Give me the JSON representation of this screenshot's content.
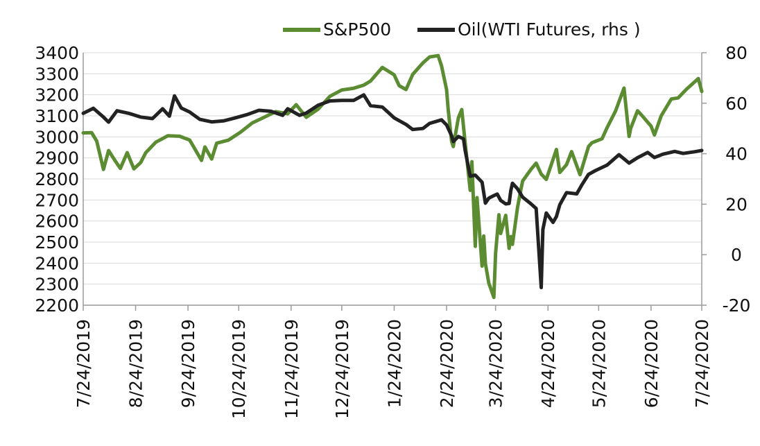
{
  "chart_data": {
    "type": "line",
    "title": "",
    "xlabel": "",
    "ylabel": "",
    "grid": "horizontal",
    "legend": "top-right",
    "x_ticks": [
      "7/24/2019",
      "8/24/2019",
      "9/24/2019",
      "10/24/2019",
      "11/24/2019",
      "12/24/2019",
      "1/24/2020",
      "2/24/2020",
      "3/24/2020",
      "4/24/2020",
      "5/24/2020",
      "6/24/2020",
      "7/24/2020"
    ],
    "left_axis": {
      "ylim": [
        2200,
        3400
      ],
      "ticks": [
        2200,
        2300,
        2400,
        2500,
        2600,
        2700,
        2800,
        2900,
        3000,
        3100,
        3200,
        3300,
        3400
      ]
    },
    "right_axis": {
      "ylim": [
        -20,
        80
      ],
      "ticks": [
        -20,
        0,
        20,
        40,
        60,
        80
      ],
      "tick_labels": [
        "-20",
        "0",
        "20",
        "40",
        "60",
        "80"
      ]
    },
    "series": [
      {
        "name": "S&P500",
        "axis": "left",
        "color": "#5b8c32",
        "points": [
          [
            "2019-07-24",
            3019
          ],
          [
            "2019-07-29",
            3020
          ],
          [
            "2019-08-01",
            2980
          ],
          [
            "2019-08-05",
            2845
          ],
          [
            "2019-08-08",
            2935
          ],
          [
            "2019-08-12",
            2885
          ],
          [
            "2019-08-15",
            2850
          ],
          [
            "2019-08-19",
            2925
          ],
          [
            "2019-08-23",
            2848
          ],
          [
            "2019-08-27",
            2878
          ],
          [
            "2019-08-30",
            2925
          ],
          [
            "2019-09-05",
            2975
          ],
          [
            "2019-09-12",
            3005
          ],
          [
            "2019-09-19",
            3003
          ],
          [
            "2019-09-25",
            2985
          ],
          [
            "2019-10-02",
            2888
          ],
          [
            "2019-10-04",
            2952
          ],
          [
            "2019-10-08",
            2895
          ],
          [
            "2019-10-11",
            2970
          ],
          [
            "2019-10-18",
            2985
          ],
          [
            "2019-10-25",
            3022
          ],
          [
            "2019-11-01",
            3066
          ],
          [
            "2019-11-08",
            3093
          ],
          [
            "2019-11-15",
            3120
          ],
          [
            "2019-11-22",
            3110
          ],
          [
            "2019-11-27",
            3153
          ],
          [
            "2019-12-03",
            3093
          ],
          [
            "2019-12-10",
            3132
          ],
          [
            "2019-12-17",
            3193
          ],
          [
            "2019-12-24",
            3223
          ],
          [
            "2019-12-31",
            3231
          ],
          [
            "2020-01-06",
            3246
          ],
          [
            "2020-01-10",
            3265
          ],
          [
            "2020-01-17",
            3330
          ],
          [
            "2020-01-24",
            3295
          ],
          [
            "2020-01-27",
            3243
          ],
          [
            "2020-01-31",
            3225
          ],
          [
            "2020-02-04",
            3297
          ],
          [
            "2020-02-10",
            3352
          ],
          [
            "2020-02-14",
            3380
          ],
          [
            "2020-02-19",
            3386
          ],
          [
            "2020-02-21",
            3338
          ],
          [
            "2020-02-24",
            3225
          ],
          [
            "2020-02-25",
            3128
          ],
          [
            "2020-02-27",
            2978
          ],
          [
            "2020-02-28",
            2954
          ],
          [
            "2020-03-02",
            3090
          ],
          [
            "2020-03-04",
            3130
          ],
          [
            "2020-03-06",
            2972
          ],
          [
            "2020-03-09",
            2746
          ],
          [
            "2020-03-10",
            2882
          ],
          [
            "2020-03-12",
            2480
          ],
          [
            "2020-03-13",
            2711
          ],
          [
            "2020-03-16",
            2386
          ],
          [
            "2020-03-17",
            2529
          ],
          [
            "2020-03-18",
            2398
          ],
          [
            "2020-03-20",
            2305
          ],
          [
            "2020-03-23",
            2237
          ],
          [
            "2020-03-24",
            2447
          ],
          [
            "2020-03-26",
            2630
          ],
          [
            "2020-03-27",
            2541
          ],
          [
            "2020-03-30",
            2627
          ],
          [
            "2020-04-01",
            2470
          ],
          [
            "2020-04-02",
            2526
          ],
          [
            "2020-04-03",
            2489
          ],
          [
            "2020-04-06",
            2664
          ],
          [
            "2020-04-08",
            2750
          ],
          [
            "2020-04-09",
            2790
          ],
          [
            "2020-04-14",
            2846
          ],
          [
            "2020-04-17",
            2875
          ],
          [
            "2020-04-20",
            2823
          ],
          [
            "2020-04-23",
            2798
          ],
          [
            "2020-04-29",
            2940
          ],
          [
            "2020-05-01",
            2831
          ],
          [
            "2020-05-05",
            2868
          ],
          [
            "2020-05-08",
            2930
          ],
          [
            "2020-05-13",
            2820
          ],
          [
            "2020-05-18",
            2954
          ],
          [
            "2020-05-20",
            2972
          ],
          [
            "2020-05-26",
            2991
          ],
          [
            "2020-05-29",
            3044
          ],
          [
            "2020-06-03",
            3123
          ],
          [
            "2020-06-08",
            3232
          ],
          [
            "2020-06-11",
            3002
          ],
          [
            "2020-06-12",
            3041
          ],
          [
            "2020-06-16",
            3124
          ],
          [
            "2020-06-19",
            3098
          ],
          [
            "2020-06-24",
            3051
          ],
          [
            "2020-06-26",
            3009
          ],
          [
            "2020-06-30",
            3100
          ],
          [
            "2020-07-06",
            3180
          ],
          [
            "2020-07-10",
            3185
          ],
          [
            "2020-07-15",
            3227
          ],
          [
            "2020-07-22",
            3277
          ],
          [
            "2020-07-24",
            3216
          ]
        ]
      },
      {
        "name": "Oil(WTI Futures, rhs )",
        "axis": "right",
        "color": "#222222",
        "points": [
          [
            "2019-07-24",
            56.0
          ],
          [
            "2019-07-30",
            58.0
          ],
          [
            "2019-08-05",
            54.5
          ],
          [
            "2019-08-08",
            52.5
          ],
          [
            "2019-08-13",
            57.0
          ],
          [
            "2019-08-20",
            56.0
          ],
          [
            "2019-08-27",
            54.5
          ],
          [
            "2019-09-03",
            53.9
          ],
          [
            "2019-09-09",
            57.8
          ],
          [
            "2019-09-13",
            54.9
          ],
          [
            "2019-09-16",
            62.9
          ],
          [
            "2019-09-20",
            58.1
          ],
          [
            "2019-09-25",
            56.5
          ],
          [
            "2019-10-01",
            53.6
          ],
          [
            "2019-10-08",
            52.6
          ],
          [
            "2019-10-15",
            53.0
          ],
          [
            "2019-10-22",
            54.2
          ],
          [
            "2019-10-29",
            55.5
          ],
          [
            "2019-11-05",
            57.2
          ],
          [
            "2019-11-12",
            56.8
          ],
          [
            "2019-11-19",
            55.2
          ],
          [
            "2019-11-22",
            57.8
          ],
          [
            "2019-11-29",
            55.2
          ],
          [
            "2019-12-03",
            56.1
          ],
          [
            "2019-12-10",
            59.2
          ],
          [
            "2019-12-17",
            60.9
          ],
          [
            "2019-12-24",
            61.1
          ],
          [
            "2019-12-31",
            61.1
          ],
          [
            "2020-01-06",
            63.3
          ],
          [
            "2020-01-10",
            59.0
          ],
          [
            "2020-01-17",
            58.5
          ],
          [
            "2020-01-24",
            54.2
          ],
          [
            "2020-01-31",
            51.6
          ],
          [
            "2020-02-04",
            49.6
          ],
          [
            "2020-02-10",
            50.0
          ],
          [
            "2020-02-14",
            52.0
          ],
          [
            "2020-02-21",
            53.4
          ],
          [
            "2020-02-24",
            51.4
          ],
          [
            "2020-02-27",
            47.1
          ],
          [
            "2020-02-28",
            44.8
          ],
          [
            "2020-03-02",
            46.8
          ],
          [
            "2020-03-05",
            45.9
          ],
          [
            "2020-03-06",
            41.3
          ],
          [
            "2020-03-09",
            31.1
          ],
          [
            "2020-03-12",
            31.5
          ],
          [
            "2020-03-16",
            28.7
          ],
          [
            "2020-03-18",
            20.4
          ],
          [
            "2020-03-20",
            22.4
          ],
          [
            "2020-03-23",
            23.4
          ],
          [
            "2020-03-25",
            24.0
          ],
          [
            "2020-03-27",
            21.5
          ],
          [
            "2020-03-30",
            20.1
          ],
          [
            "2020-04-01",
            20.3
          ],
          [
            "2020-04-02",
            25.3
          ],
          [
            "2020-04-03",
            28.3
          ],
          [
            "2020-04-06",
            26.1
          ],
          [
            "2020-04-09",
            22.8
          ],
          [
            "2020-04-14",
            20.1
          ],
          [
            "2020-04-17",
            18.3
          ],
          [
            "2020-04-20",
            -13.0
          ],
          [
            "2020-04-21",
            10.0
          ],
          [
            "2020-04-23",
            16.5
          ],
          [
            "2020-04-27",
            12.8
          ],
          [
            "2020-04-29",
            15.1
          ],
          [
            "2020-05-01",
            19.8
          ],
          [
            "2020-05-05",
            24.6
          ],
          [
            "2020-05-11",
            24.1
          ],
          [
            "2020-05-14",
            27.6
          ],
          [
            "2020-05-18",
            31.8
          ],
          [
            "2020-05-22",
            33.3
          ],
          [
            "2020-05-29",
            35.5
          ],
          [
            "2020-06-05",
            39.6
          ],
          [
            "2020-06-11",
            36.3
          ],
          [
            "2020-06-16",
            38.4
          ],
          [
            "2020-06-22",
            40.5
          ],
          [
            "2020-06-26",
            38.5
          ],
          [
            "2020-07-01",
            39.8
          ],
          [
            "2020-07-08",
            40.9
          ],
          [
            "2020-07-13",
            40.1
          ],
          [
            "2020-07-20",
            40.8
          ],
          [
            "2020-07-24",
            41.3
          ]
        ]
      }
    ]
  }
}
